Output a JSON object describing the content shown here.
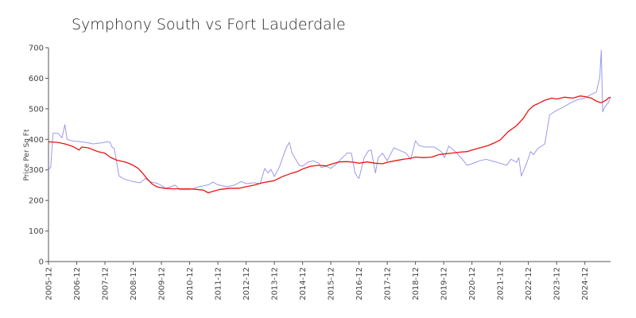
{
  "chart_data": {
    "type": "line",
    "title": "Symphony South vs Fort Lauderdale",
    "xlabel": "",
    "ylabel": "Price Per Sq Ft",
    "ylim": [
      0,
      700
    ],
    "yticks": [
      0,
      100,
      200,
      300,
      400,
      500,
      600,
      700
    ],
    "xlim": [
      2005.92,
      2025.83
    ],
    "xticks": [
      {
        "label": "2005-12",
        "value": 2005.92
      },
      {
        "label": "2006-12",
        "value": 2006.92
      },
      {
        "label": "2007-12",
        "value": 2007.92
      },
      {
        "label": "2008-12",
        "value": 2008.92
      },
      {
        "label": "2009-12",
        "value": 2009.92
      },
      {
        "label": "2010-12",
        "value": 2010.92
      },
      {
        "label": "2011-12",
        "value": 2011.92
      },
      {
        "label": "2012-12",
        "value": 2012.92
      },
      {
        "label": "2013-12",
        "value": 2013.92
      },
      {
        "label": "2014-12",
        "value": 2014.92
      },
      {
        "label": "2015-12",
        "value": 2015.92
      },
      {
        "label": "2016-12",
        "value": 2016.92
      },
      {
        "label": "2017-12",
        "value": 2017.92
      },
      {
        "label": "2018-12",
        "value": 2018.92
      },
      {
        "label": "2019-12",
        "value": 2019.92
      },
      {
        "label": "2020-12",
        "value": 2020.92
      },
      {
        "label": "2021-12",
        "value": 2021.92
      },
      {
        "label": "2022-12",
        "value": 2022.92
      },
      {
        "label": "2023-12",
        "value": 2023.92
      },
      {
        "label": "2024-12",
        "value": 2024.92
      }
    ],
    "series": [
      {
        "name": "Symphony South",
        "color": "#9999ee",
        "points": [
          [
            2005.92,
            300
          ],
          [
            2006.0,
            310
          ],
          [
            2006.08,
            420
          ],
          [
            2006.25,
            420
          ],
          [
            2006.4,
            405
          ],
          [
            2006.5,
            448
          ],
          [
            2006.58,
            400
          ],
          [
            2006.75,
            395
          ],
          [
            2007.0,
            393
          ],
          [
            2007.25,
            390
          ],
          [
            2007.5,
            385
          ],
          [
            2007.75,
            388
          ],
          [
            2008.0,
            392
          ],
          [
            2008.1,
            390
          ],
          [
            2008.17,
            375
          ],
          [
            2008.25,
            370
          ],
          [
            2008.42,
            280
          ],
          [
            2008.6,
            270
          ],
          [
            2008.9,
            262
          ],
          [
            2009.17,
            258
          ],
          [
            2009.35,
            272
          ],
          [
            2009.5,
            262
          ],
          [
            2009.8,
            255
          ],
          [
            2010.08,
            240
          ],
          [
            2010.25,
            245
          ],
          [
            2010.4,
            250
          ],
          [
            2010.58,
            235
          ],
          [
            2010.92,
            235
          ],
          [
            2011.25,
            245
          ],
          [
            2011.6,
            252
          ],
          [
            2011.75,
            260
          ],
          [
            2011.9,
            252
          ],
          [
            2012.25,
            245
          ],
          [
            2012.5,
            250
          ],
          [
            2012.75,
            262
          ],
          [
            2012.92,
            255
          ],
          [
            2013.2,
            258
          ],
          [
            2013.42,
            255
          ],
          [
            2013.58,
            305
          ],
          [
            2013.7,
            290
          ],
          [
            2013.8,
            302
          ],
          [
            2013.92,
            278
          ],
          [
            2014.1,
            310
          ],
          [
            2014.33,
            370
          ],
          [
            2014.45,
            390
          ],
          [
            2014.55,
            355
          ],
          [
            2014.8,
            315
          ],
          [
            2014.92,
            312
          ],
          [
            2015.1,
            325
          ],
          [
            2015.3,
            330
          ],
          [
            2015.5,
            322
          ],
          [
            2015.58,
            308
          ],
          [
            2015.75,
            312
          ],
          [
            2015.92,
            305
          ],
          [
            2016.1,
            318
          ],
          [
            2016.33,
            340
          ],
          [
            2016.5,
            355
          ],
          [
            2016.65,
            355
          ],
          [
            2016.78,
            290
          ],
          [
            2016.85,
            280
          ],
          [
            2016.92,
            272
          ],
          [
            2017.1,
            340
          ],
          [
            2017.25,
            362
          ],
          [
            2017.35,
            365
          ],
          [
            2017.5,
            290
          ],
          [
            2017.6,
            340
          ],
          [
            2017.75,
            355
          ],
          [
            2017.92,
            330
          ],
          [
            2018.15,
            372
          ],
          [
            2018.33,
            365
          ],
          [
            2018.58,
            355
          ],
          [
            2018.75,
            335
          ],
          [
            2018.92,
            395
          ],
          [
            2019.05,
            380
          ],
          [
            2019.25,
            375
          ],
          [
            2019.58,
            375
          ],
          [
            2019.83,
            360
          ],
          [
            2019.95,
            340
          ],
          [
            2020.1,
            378
          ],
          [
            2020.33,
            360
          ],
          [
            2020.58,
            335
          ],
          [
            2020.75,
            315
          ],
          [
            2020.92,
            320
          ],
          [
            2021.2,
            330
          ],
          [
            2021.42,
            335
          ],
          [
            2021.67,
            328
          ],
          [
            2021.92,
            322
          ],
          [
            2022.15,
            315
          ],
          [
            2022.3,
            335
          ],
          [
            2022.5,
            325
          ],
          [
            2022.58,
            340
          ],
          [
            2022.67,
            280
          ],
          [
            2022.85,
            320
          ],
          [
            2023.0,
            360
          ],
          [
            2023.1,
            350
          ],
          [
            2023.25,
            370
          ],
          [
            2023.5,
            385
          ],
          [
            2023.67,
            480
          ],
          [
            2023.92,
            495
          ],
          [
            2024.15,
            505
          ],
          [
            2024.42,
            520
          ],
          [
            2024.67,
            530
          ],
          [
            2024.92,
            535
          ],
          [
            2025.1,
            545
          ],
          [
            2025.33,
            555
          ],
          [
            2025.45,
            605
          ],
          [
            2025.5,
            692
          ],
          [
            2025.55,
            490
          ],
          [
            2025.62,
            505
          ],
          [
            2025.7,
            515
          ],
          [
            2025.75,
            520
          ],
          [
            2025.83,
            540
          ]
        ]
      },
      {
        "name": "Fort Lauderdale",
        "color": "#ee1111",
        "points": [
          [
            2005.92,
            392
          ],
          [
            2006.25,
            390
          ],
          [
            2006.5,
            385
          ],
          [
            2006.75,
            378
          ],
          [
            2007.0,
            365
          ],
          [
            2007.1,
            375
          ],
          [
            2007.33,
            372
          ],
          [
            2007.67,
            360
          ],
          [
            2007.92,
            355
          ],
          [
            2008.1,
            342
          ],
          [
            2008.33,
            332
          ],
          [
            2008.67,
            325
          ],
          [
            2008.92,
            315
          ],
          [
            2009.1,
            305
          ],
          [
            2009.25,
            290
          ],
          [
            2009.42,
            270
          ],
          [
            2009.58,
            255
          ],
          [
            2009.75,
            245
          ],
          [
            2010.0,
            240
          ],
          [
            2010.33,
            238
          ],
          [
            2010.67,
            238
          ],
          [
            2010.92,
            238
          ],
          [
            2011.17,
            236
          ],
          [
            2011.4,
            234
          ],
          [
            2011.58,
            225
          ],
          [
            2011.75,
            230
          ],
          [
            2012.0,
            236
          ],
          [
            2012.33,
            240
          ],
          [
            2012.67,
            240
          ],
          [
            2012.92,
            245
          ],
          [
            2013.2,
            250
          ],
          [
            2013.5,
            258
          ],
          [
            2013.75,
            262
          ],
          [
            2013.92,
            265
          ],
          [
            2014.2,
            278
          ],
          [
            2014.5,
            288
          ],
          [
            2014.75,
            295
          ],
          [
            2014.92,
            303
          ],
          [
            2015.2,
            312
          ],
          [
            2015.5,
            315
          ],
          [
            2015.75,
            313
          ],
          [
            2015.92,
            318
          ],
          [
            2016.2,
            326
          ],
          [
            2016.5,
            327
          ],
          [
            2016.75,
            325
          ],
          [
            2016.92,
            322
          ],
          [
            2017.2,
            326
          ],
          [
            2017.5,
            322
          ],
          [
            2017.75,
            320
          ],
          [
            2017.92,
            325
          ],
          [
            2018.2,
            330
          ],
          [
            2018.5,
            335
          ],
          [
            2018.75,
            338
          ],
          [
            2018.92,
            342
          ],
          [
            2019.2,
            340
          ],
          [
            2019.5,
            342
          ],
          [
            2019.75,
            350
          ],
          [
            2019.92,
            352
          ],
          [
            2020.2,
            355
          ],
          [
            2020.5,
            358
          ],
          [
            2020.75,
            360
          ],
          [
            2020.92,
            365
          ],
          [
            2021.2,
            372
          ],
          [
            2021.5,
            380
          ],
          [
            2021.75,
            390
          ],
          [
            2021.92,
            398
          ],
          [
            2022.2,
            425
          ],
          [
            2022.5,
            445
          ],
          [
            2022.75,
            470
          ],
          [
            2022.92,
            495
          ],
          [
            2023.1,
            510
          ],
          [
            2023.33,
            520
          ],
          [
            2023.5,
            528
          ],
          [
            2023.75,
            535
          ],
          [
            2023.92,
            532
          ],
          [
            2024.2,
            538
          ],
          [
            2024.5,
            535
          ],
          [
            2024.75,
            542
          ],
          [
            2024.92,
            540
          ],
          [
            2025.15,
            535
          ],
          [
            2025.33,
            525
          ],
          [
            2025.5,
            520
          ],
          [
            2025.67,
            528
          ],
          [
            2025.75,
            535
          ],
          [
            2025.83,
            538
          ]
        ]
      }
    ]
  }
}
